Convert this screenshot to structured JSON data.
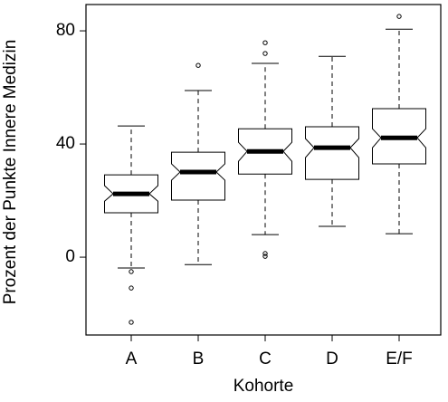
{
  "chart_data": {
    "type": "boxplot",
    "x_label": "Kohorte",
    "y_label": "Prozent der Punkte Innere Medizin",
    "categories": [
      "A",
      "B",
      "C",
      "D",
      "E/F"
    ],
    "boxes": [
      {
        "whisker_low": -3.8,
        "q1": 15.7,
        "median": 22.4,
        "q3": 29.1,
        "whisker_high": 46.4,
        "notch_low": 19.8,
        "notch_high": 25.3,
        "outliers": [
          -5.1,
          -10.9,
          -23
        ]
      },
      {
        "whisker_low": -2.6,
        "q1": 20.2,
        "median": 30.1,
        "q3": 37.1,
        "whisker_high": 58.9,
        "notch_low": 27.2,
        "notch_high": 33,
        "outliers": [
          67.8
        ]
      },
      {
        "whisker_low": 8,
        "q1": 29.4,
        "median": 37.4,
        "q3": 45.4,
        "whisker_high": 68.5,
        "notch_low": 33.9,
        "notch_high": 40.6,
        "outliers": [
          75.8,
          72,
          1.3,
          0.3
        ]
      },
      {
        "whisker_low": 10.9,
        "q1": 27.5,
        "median": 38.7,
        "q3": 46.1,
        "whisker_high": 71,
        "notch_low": 35.2,
        "notch_high": 41.9,
        "outliers": []
      },
      {
        "whisker_low": 8.3,
        "q1": 33,
        "median": 42.2,
        "q3": 52.5,
        "whisker_high": 80.6,
        "notch_low": 38.7,
        "notch_high": 45.4,
        "outliers": [
          85.1
        ]
      }
    ],
    "ylim": [
      -27.5,
      89.3
    ],
    "yticks": [
      0,
      40,
      80
    ]
  }
}
